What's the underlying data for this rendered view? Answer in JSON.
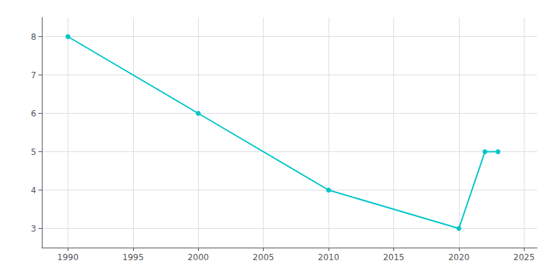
{
  "chart_data": {
    "type": "line",
    "x": [
      1990,
      2000,
      2010,
      2020,
      2022,
      2023
    ],
    "values": [
      8,
      6,
      4,
      3,
      5,
      5
    ],
    "color": "#00C5C8",
    "marker": "circle",
    "xlim": [
      1988,
      2026
    ],
    "ylim": [
      2.5,
      8.5
    ],
    "xticks": [
      1990,
      1995,
      2000,
      2005,
      2010,
      2015,
      2020,
      2025
    ],
    "yticks": [
      3,
      4,
      5,
      6,
      7,
      8
    ],
    "grid": true
  }
}
